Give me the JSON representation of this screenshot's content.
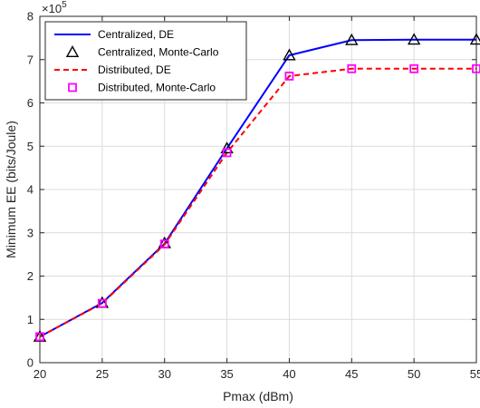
{
  "chart_data": {
    "type": "line",
    "xlabel": "Pmax (dBm)",
    "ylabel": "Minimum EE (bits/Joule)",
    "y_exponent_base": "×10",
    "y_exponent_power": "5",
    "xlim": [
      20,
      55
    ],
    "ylim": [
      0,
      8
    ],
    "xticks": [
      20,
      25,
      30,
      35,
      40,
      45,
      50,
      55
    ],
    "yticks": [
      0,
      1,
      2,
      3,
      4,
      5,
      6,
      7,
      8
    ],
    "grid": true,
    "legend_position": "top-left",
    "series": [
      {
        "name": "Centralized, DE",
        "style": "solid-line",
        "color": "#0000ff",
        "x": [
          20,
          25,
          30,
          35,
          40,
          45,
          50,
          55
        ],
        "values": [
          0.6,
          1.38,
          2.75,
          4.95,
          7.1,
          7.45,
          7.46,
          7.46
        ]
      },
      {
        "name": "Centralized, Monte-Carlo",
        "style": "triangle-marker",
        "color": "#000000",
        "x": [
          20,
          25,
          30,
          35,
          40,
          45,
          50,
          55
        ],
        "values": [
          0.6,
          1.38,
          2.76,
          4.95,
          7.1,
          7.45,
          7.46,
          7.46
        ]
      },
      {
        "name": "Distributed, DE",
        "style": "dashed-line",
        "color": "#ff0000",
        "x": [
          20,
          25,
          30,
          35,
          40,
          45,
          50,
          55
        ],
        "values": [
          0.6,
          1.37,
          2.73,
          4.85,
          6.62,
          6.79,
          6.79,
          6.79
        ]
      },
      {
        "name": "Distributed, Monte-Carlo",
        "style": "square-marker",
        "color": "#ff00ff",
        "x": [
          20,
          25,
          30,
          35,
          40,
          45,
          50,
          55
        ],
        "values": [
          0.6,
          1.37,
          2.74,
          4.85,
          6.62,
          6.79,
          6.79,
          6.79
        ]
      }
    ]
  }
}
